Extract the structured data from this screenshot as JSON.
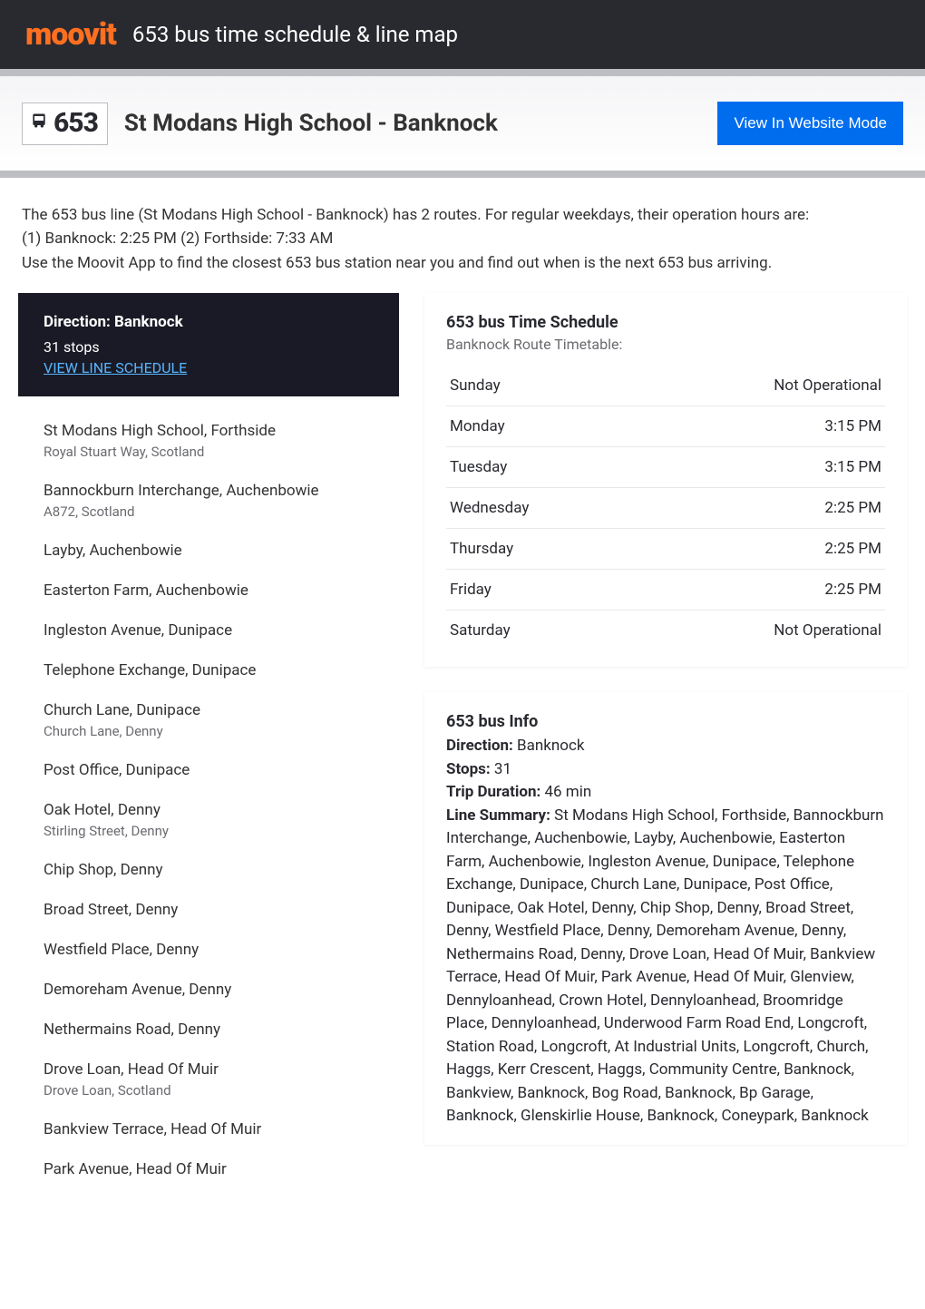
{
  "header": {
    "logo_text": "moovit",
    "title": "653 bus time schedule & line map"
  },
  "subheader": {
    "route_number": "653",
    "route_title": "St Modans High School - Banknock",
    "website_mode_label": "View In Website Mode"
  },
  "intro": {
    "line1": "The 653 bus line (St Modans High School - Banknock) has 2 routes. For regular weekdays, their operation hours are:",
    "line2": "(1) Banknock: 2:25 PM (2) Forthside: 7:33 AM",
    "line3": "Use the Moovit App to find the closest 653 bus station near you and find out when is the next 653 bus arriving."
  },
  "direction_card": {
    "title": "Direction: Banknock",
    "stops_count": "31 stops",
    "schedule_link": "VIEW LINE SCHEDULE"
  },
  "stops": [
    {
      "name": "St Modans High School, Forthside",
      "sub": "Royal Stuart Way, Scotland"
    },
    {
      "name": "Bannockburn Interchange, Auchenbowie",
      "sub": "A872, Scotland"
    },
    {
      "name": "Layby, Auchenbowie",
      "sub": ""
    },
    {
      "name": "Easterton Farm, Auchenbowie",
      "sub": ""
    },
    {
      "name": "Ingleston Avenue, Dunipace",
      "sub": ""
    },
    {
      "name": "Telephone Exchange, Dunipace",
      "sub": ""
    },
    {
      "name": "Church Lane, Dunipace",
      "sub": "Church Lane, Denny"
    },
    {
      "name": "Post Office, Dunipace",
      "sub": ""
    },
    {
      "name": "Oak Hotel, Denny",
      "sub": "Stirling Street, Denny"
    },
    {
      "name": "Chip Shop, Denny",
      "sub": ""
    },
    {
      "name": "Broad Street, Denny",
      "sub": ""
    },
    {
      "name": "Westfield Place, Denny",
      "sub": ""
    },
    {
      "name": "Demoreham Avenue, Denny",
      "sub": ""
    },
    {
      "name": "Nethermains Road, Denny",
      "sub": ""
    },
    {
      "name": "Drove Loan, Head Of Muir",
      "sub": "Drove Loan, Scotland"
    },
    {
      "name": "Bankview Terrace, Head Of Muir",
      "sub": ""
    },
    {
      "name": "Park Avenue, Head Of Muir",
      "sub": ""
    }
  ],
  "schedule_panel": {
    "title": "653 bus Time Schedule",
    "subtitle": "Banknock Route Timetable:",
    "rows": [
      {
        "day": "Sunday",
        "time": "Not Operational"
      },
      {
        "day": "Monday",
        "time": "3:15 PM"
      },
      {
        "day": "Tuesday",
        "time": "3:15 PM"
      },
      {
        "day": "Wednesday",
        "time": "2:25 PM"
      },
      {
        "day": "Thursday",
        "time": "2:25 PM"
      },
      {
        "day": "Friday",
        "time": "2:25 PM"
      },
      {
        "day": "Saturday",
        "time": "Not Operational"
      }
    ]
  },
  "info_panel": {
    "title": "653 bus Info",
    "direction_label": "Direction:",
    "direction_value": " Banknock",
    "stops_label": "Stops:",
    "stops_value": " 31",
    "duration_label": "Trip Duration:",
    "duration_value": " 46 min",
    "summary_label": "Line Summary:",
    "summary_value": " St Modans High School, Forthside, Bannockburn Interchange, Auchenbowie, Layby, Auchenbowie, Easterton Farm, Auchenbowie, Ingleston Avenue, Dunipace, Telephone Exchange, Dunipace, Church Lane, Dunipace, Post Office, Dunipace, Oak Hotel, Denny, Chip Shop, Denny, Broad Street, Denny, Westfield Place, Denny, Demoreham Avenue, Denny, Nethermains Road, Denny, Drove Loan, Head Of Muir, Bankview Terrace, Head Of Muir, Park Avenue, Head Of Muir, Glenview, Dennyloanhead, Crown Hotel, Dennyloanhead, Broomridge Place, Dennyloanhead, Underwood Farm Road End, Longcroft, Station Road, Longcroft, At Industrial Units, Longcroft, Church, Haggs, Kerr Crescent, Haggs, Community Centre, Banknock, Bankview, Banknock, Bog Road, Banknock, Bp Garage, Banknock, Glenskirlie House, Banknock, Coneypark, Banknock"
  },
  "colors": {
    "brand_orange": "#ff6f20",
    "header_bg": "#292a30",
    "button_blue": "#006def",
    "link_blue": "#57b6ff",
    "border_gray": "#bdbec2",
    "text_gray": "#6a6b70"
  }
}
